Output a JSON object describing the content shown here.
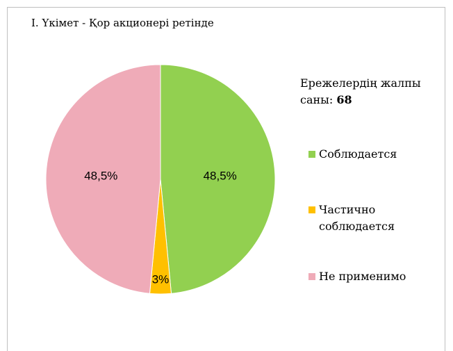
{
  "chart_data": {
    "type": "pie",
    "title": "I. Үкімет - Қор акционері ретінде",
    "total_label": "Ережелердің жалпы саны:",
    "total": 68,
    "categories": [
      "Соблюдается",
      "Частично соблюдается",
      "Не применимо"
    ],
    "values": [
      48.5,
      3,
      48.5
    ],
    "value_labels": [
      "48,5%",
      "3%",
      "48,5%"
    ],
    "colors": [
      "#92d050",
      "#ffc000",
      "#efabb8"
    ]
  }
}
